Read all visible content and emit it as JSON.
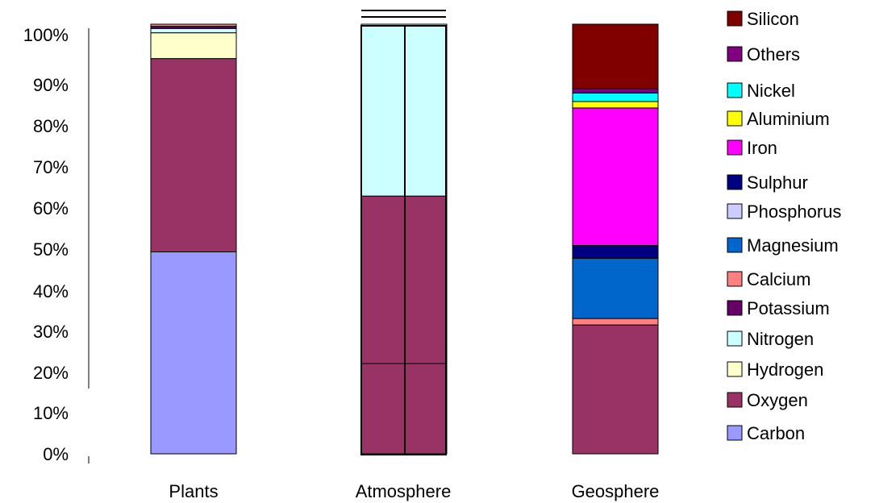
{
  "chart_data": {
    "type": "bar",
    "stacked": true,
    "percent": true,
    "title": "",
    "xlabel": "",
    "ylabel": "",
    "ylim": [
      0,
      100
    ],
    "y_ticks": [
      "0%",
      "10%",
      "20%",
      "30%",
      "40%",
      "50%",
      "60%",
      "70%",
      "80%",
      "90%",
      "100%"
    ],
    "grid": false,
    "legend_position": "right",
    "categories": [
      "Plants",
      "Atmosphere",
      "Geosphere"
    ],
    "series": [
      {
        "name": "Carbon",
        "color": "#9999FF",
        "values": [
          47,
          0,
          0
        ]
      },
      {
        "name": "Oxygen",
        "color": "#993366",
        "values": [
          45,
          6,
          30
        ]
      },
      {
        "name": "Hydrogen",
        "color": "#FFFFCC",
        "values": [
          6,
          0,
          0
        ]
      },
      {
        "name": "Nitrogen",
        "color": "#CCFFFF",
        "values": [
          1,
          4,
          0
        ]
      },
      {
        "name": "Potassium",
        "color": "#660066",
        "values": [
          0.5,
          0,
          0
        ]
      },
      {
        "name": "Calcium",
        "color": "#FF8080",
        "values": [
          0.5,
          0,
          1.5
        ]
      },
      {
        "name": "Magnesium",
        "color": "#0066CC",
        "values": [
          0,
          0,
          14
        ]
      },
      {
        "name": "Phosphorus",
        "color": "#CCCCFF",
        "values": [
          0,
          0,
          0
        ]
      },
      {
        "name": "Sulphur",
        "color": "#000080",
        "values": [
          0,
          0,
          3
        ]
      },
      {
        "name": "Iron",
        "color": "#FF00FF",
        "values": [
          0,
          0,
          32
        ]
      },
      {
        "name": "Aluminium",
        "color": "#FFFF00",
        "values": [
          0,
          0,
          1.5
        ]
      },
      {
        "name": "Nickel",
        "color": "#00FFFF",
        "values": [
          0,
          0,
          2
        ]
      },
      {
        "name": "Others",
        "color": "#800080",
        "values": [
          0,
          0,
          1
        ]
      },
      {
        "name": "Silicon",
        "color": "#800000",
        "values": [
          0,
          0,
          15
        ]
      }
    ],
    "legend_order": [
      "Silicon",
      "Others",
      "Nickel",
      "Aluminium",
      "Iron",
      "Sulphur",
      "Phosphorus",
      "Magnesium",
      "Calcium",
      "Potassium",
      "Nitrogen",
      "Hydrogen",
      "Oxygen",
      "Carbon"
    ]
  }
}
